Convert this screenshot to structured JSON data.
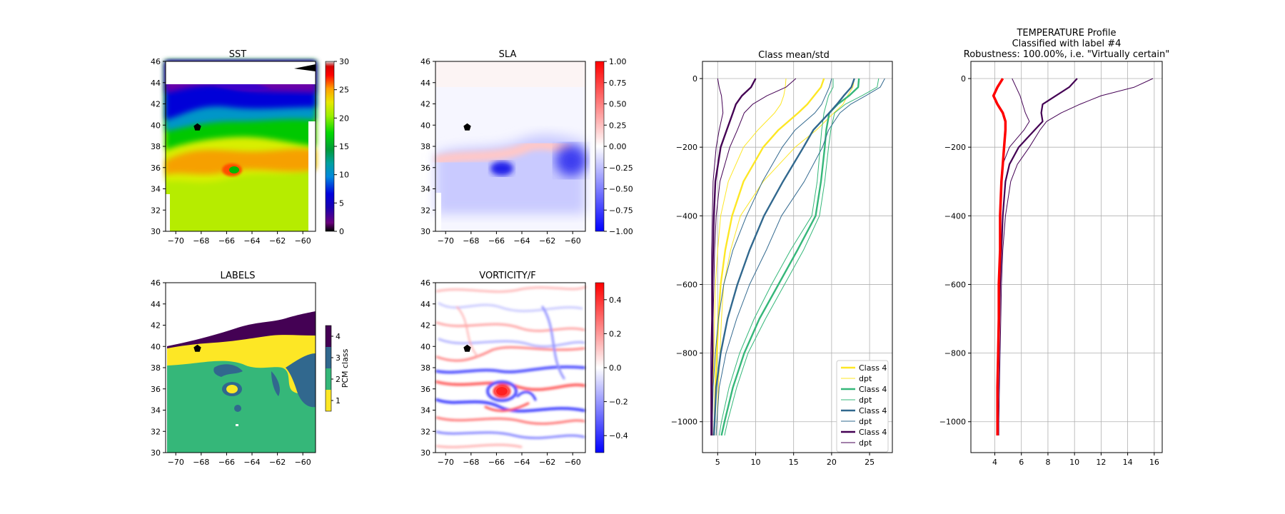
{
  "maps": {
    "sst": {
      "title": "SST",
      "cmap": "nipy_spectral",
      "vmin": 0,
      "vmax": 30,
      "cbar_ticks": [
        "0",
        "5",
        "10",
        "15",
        "20",
        "25",
        "30"
      ]
    },
    "sla": {
      "title": "SLA",
      "cmap": "bwr",
      "vmin": -1.0,
      "vmax": 1.0,
      "cbar_ticks": [
        "−1.00",
        "−0.75",
        "−0.50",
        "−0.25",
        "0.00",
        "0.25",
        "0.50",
        "0.75",
        "1.00"
      ]
    },
    "labels": {
      "title": "LABELS",
      "cbar_label": "PCM class",
      "cbar_ticks": [
        "1",
        "2",
        "3",
        "4"
      ],
      "class_colors": [
        "#fde725",
        "#35b779",
        "#31688e",
        "#440154"
      ]
    },
    "vorticity": {
      "title": "VORTICITY/F",
      "cmap": "bwr",
      "vmin": -0.5,
      "vmax": 0.5,
      "cbar_ticks": [
        "−0.4",
        "−0.2",
        "0.0",
        "0.2",
        "0.4"
      ]
    },
    "lon_ticks": [
      "−70",
      "−68",
      "−66",
      "−64",
      "−62",
      "−60"
    ],
    "lat_ticks": [
      "30",
      "32",
      "34",
      "36",
      "38",
      "40",
      "42",
      "44",
      "46"
    ],
    "marker": {
      "lon": -68.3,
      "lat": 39.8
    }
  },
  "chart_data": [
    {
      "type": "line",
      "title": "Class mean/std",
      "xlim": [
        3,
        28
      ],
      "ylim": [
        -1090,
        50
      ],
      "xticks": [
        "5",
        "10",
        "15",
        "20",
        "25"
      ],
      "yticks": [
        "0",
        "−200",
        "−400",
        "−600",
        "−800",
        "−1000"
      ],
      "grid": true,
      "legend": "lower-right",
      "legend_entries": [
        "Class 4",
        "dpt",
        "Class 4",
        "dpt",
        "Class 4",
        "dpt",
        "Class 4",
        "dpt"
      ],
      "depth": [
        0,
        -25,
        -50,
        -75,
        -100,
        -150,
        -200,
        -300,
        -400,
        -500,
        -600,
        -700,
        -800,
        -900,
        -1000,
        -1040
      ],
      "series": [
        {
          "name": "Class 4",
          "color": "#fde725",
          "mean": [
            19.0,
            18.6,
            17.7,
            16.8,
            15.6,
            13.0,
            11.0,
            8.4,
            6.9,
            6.0,
            5.4,
            5.1,
            4.9,
            4.7,
            4.6,
            4.5
          ],
          "lo": [
            14.0,
            13.9,
            13.7,
            13.3,
            12.5,
            10.3,
            8.4,
            6.4,
            5.4,
            5.0,
            4.7,
            4.6,
            4.5,
            4.4,
            4.3,
            4.3
          ],
          "hi": [
            23.0,
            22.8,
            22.1,
            21.5,
            20.3,
            18.0,
            15.2,
            11.0,
            8.0,
            6.7,
            5.8,
            5.5,
            5.3,
            5.1,
            4.9,
            4.8
          ]
        },
        {
          "name": "Class 4",
          "color": "#35b779",
          "mean": [
            23.6,
            23.5,
            22.3,
            20.8,
            19.7,
            19.3,
            19.1,
            18.6,
            17.9,
            15.5,
            13.0,
            10.5,
            8.5,
            7.0,
            5.9,
            5.5
          ],
          "lo": [
            20.2,
            20.2,
            19.6,
            19.3,
            19.0,
            18.7,
            18.5,
            18.1,
            17.4,
            14.6,
            12.1,
            9.8,
            7.9,
            6.5,
            5.5,
            5.2
          ],
          "hi": [
            26.2,
            26.0,
            24.0,
            21.8,
            20.4,
            19.9,
            19.6,
            19.1,
            18.4,
            16.3,
            13.8,
            11.3,
            9.0,
            7.5,
            6.3,
            5.9
          ]
        },
        {
          "name": "Class 4",
          "color": "#31688e",
          "mean": [
            23.0,
            22.6,
            21.6,
            20.7,
            19.7,
            17.6,
            16.3,
            13.6,
            11.1,
            9.2,
            7.6,
            6.3,
            5.4,
            4.8,
            4.6,
            4.5
          ],
          "lo": [
            20.0,
            19.7,
            19.2,
            18.7,
            17.8,
            15.2,
            13.5,
            10.9,
            8.8,
            7.0,
            5.8,
            5.1,
            4.7,
            4.4,
            4.3,
            4.3
          ],
          "hi": [
            27.0,
            26.4,
            24.5,
            22.5,
            21.1,
            19.6,
            18.8,
            16.4,
            13.4,
            11.4,
            9.2,
            7.5,
            6.1,
            5.2,
            4.9,
            4.8
          ]
        },
        {
          "name": "Class 4",
          "color": "#440154",
          "mean": [
            10.0,
            9.4,
            8.2,
            7.4,
            7.0,
            6.2,
            5.4,
            4.7,
            4.5,
            4.4,
            4.3,
            4.3,
            4.3,
            4.2,
            4.2,
            4.2
          ],
          "lo": [
            5.0,
            5.2,
            5.5,
            5.6,
            5.7,
            5.2,
            4.8,
            4.4,
            4.3,
            4.2,
            4.2,
            4.2,
            4.1,
            4.1,
            4.1,
            4.1
          ],
          "hi": [
            15.3,
            14.0,
            11.5,
            9.6,
            8.5,
            7.6,
            6.6,
            5.3,
            4.8,
            4.6,
            4.5,
            4.4,
            4.4,
            4.3,
            4.3,
            4.3
          ]
        }
      ]
    },
    {
      "type": "line",
      "title": "TEMPERATURE Profile",
      "subtitle1": "Classified with label #4",
      "subtitle2": "Robustness: 100.00%, i.e. \"Virtually certain\"",
      "xlim": [
        2.2,
        16.6
      ],
      "ylim": [
        -1090,
        50
      ],
      "xticks": [
        "4",
        "6",
        "8",
        "10",
        "12",
        "14",
        "16"
      ],
      "yticks": [
        "0",
        "−200",
        "−400",
        "−600",
        "−800",
        "−1000"
      ],
      "grid": true,
      "depth": [
        0,
        -25,
        -50,
        -75,
        -100,
        -125,
        -150,
        -200,
        -250,
        -300,
        -400,
        -500,
        -600,
        -700,
        -800,
        -900,
        -1000,
        -1040
      ],
      "profile": {
        "color": "#ff0000",
        "values": [
          4.6,
          4.2,
          3.9,
          4.2,
          4.6,
          4.8,
          4.8,
          4.7,
          4.6,
          4.5,
          4.4,
          4.4,
          4.3,
          4.3,
          4.25,
          4.2,
          4.2,
          4.2
        ]
      },
      "class_mean": {
        "color": "#440154",
        "mean": [
          10.2,
          9.6,
          8.6,
          7.6,
          7.5,
          7.6,
          7.0,
          5.8,
          5.1,
          4.8,
          4.6,
          4.5,
          4.4,
          4.35,
          4.3,
          4.25,
          4.2,
          4.2
        ],
        "lo": [
          5.3,
          5.6,
          5.9,
          6.1,
          6.3,
          6.6,
          6.2,
          5.1,
          4.6,
          4.5,
          4.4,
          4.35,
          4.3,
          4.3,
          4.25,
          4.2,
          4.15,
          4.15
        ],
        "hi": [
          15.9,
          14.5,
          12.0,
          10.4,
          9.0,
          7.9,
          7.4,
          6.6,
          5.7,
          5.2,
          4.8,
          4.6,
          4.5,
          4.45,
          4.4,
          4.35,
          4.3,
          4.3
        ]
      }
    }
  ]
}
